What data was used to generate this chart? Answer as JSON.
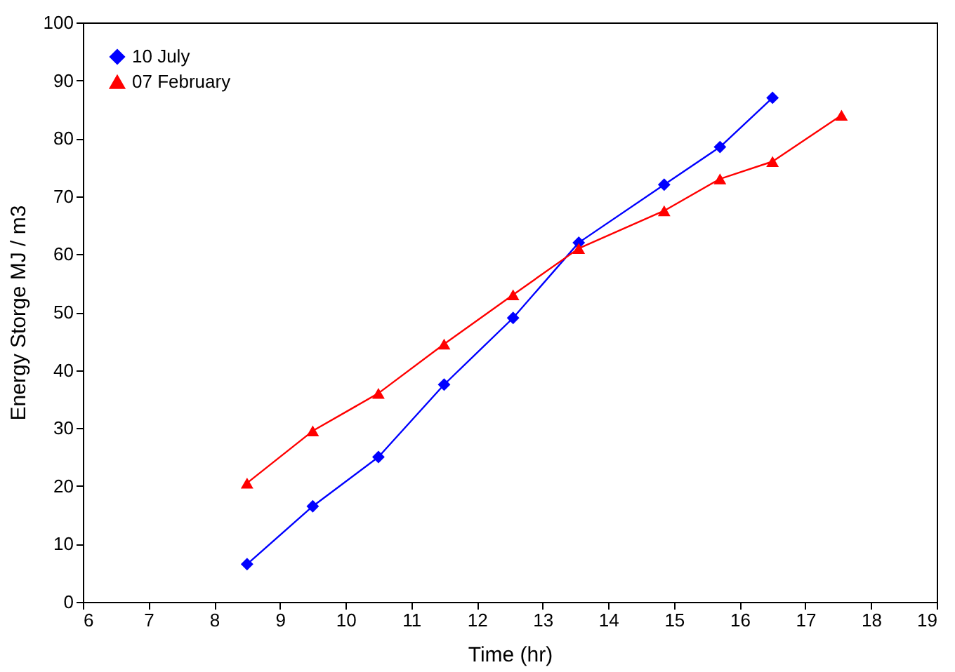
{
  "chart_data": {
    "type": "line",
    "xlabel": "Time (hr)",
    "ylabel": "Energy Storge MJ / m3",
    "xlim": [
      6,
      19
    ],
    "xticks": [
      6,
      7,
      8,
      9,
      10,
      11,
      12,
      13,
      14,
      15,
      16,
      17,
      18,
      19
    ],
    "ylim": [
      0,
      100
    ],
    "yticks": [
      0,
      10,
      20,
      30,
      40,
      50,
      60,
      70,
      80,
      90,
      100
    ],
    "grid": false,
    "legend": "top left",
    "line_style": "solid",
    "series": [
      {
        "name": "10 July",
        "color": "#0000ff",
        "marker": "diamond",
        "x": [
          8.5,
          9.5,
          10.5,
          11.5,
          12.55,
          13.55,
          14.85,
          15.7,
          16.5
        ],
        "values": [
          6.5,
          16.5,
          25,
          37.5,
          49,
          62,
          72,
          78.5,
          87
        ]
      },
      {
        "name": "07 February",
        "color": "#ff0000",
        "marker": "triangle",
        "x": [
          8.5,
          9.5,
          10.5,
          11.5,
          12.55,
          13.55,
          14.85,
          15.7,
          16.5,
          17.55
        ],
        "values": [
          20.5,
          29.5,
          36,
          44.5,
          53,
          61,
          67.5,
          73,
          76,
          84
        ]
      }
    ]
  }
}
